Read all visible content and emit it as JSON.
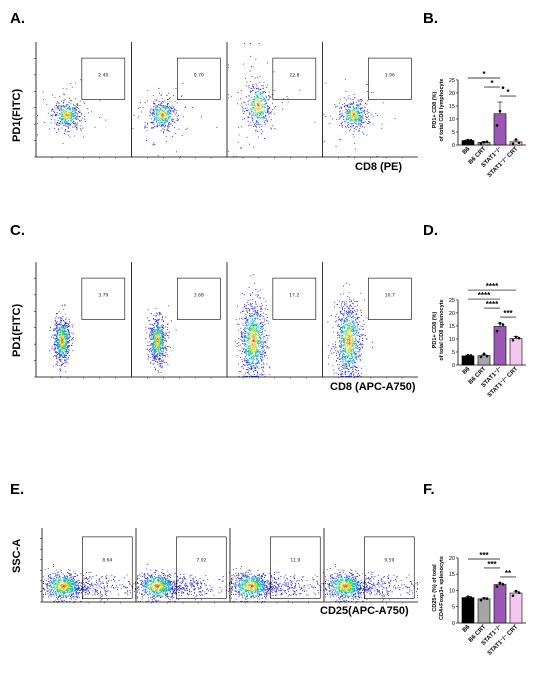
{
  "figure": {
    "letters": {
      "A": "A.",
      "B": "B.",
      "C": "C.",
      "D": "D.",
      "E": "E.",
      "F": "F."
    },
    "flow_rows": [
      {
        "id": "A",
        "ylabel": "PD1(FITC)",
        "xlabel": "CD8 (PE)",
        "gate_values": [
          "2.40",
          "0.70",
          "22.8",
          "1.96"
        ],
        "style": "sparse"
      },
      {
        "id": "C",
        "ylabel": "PD1(FITC)",
        "xlabel": "CD8 (APC-A750)",
        "gate_values": [
          "3.79",
          "3.68",
          "17.2",
          "10.7"
        ],
        "style": "vertical"
      },
      {
        "id": "E",
        "ylabel": "SSC-A",
        "xlabel": "CD25(APC-A750)",
        "gate_values": [
          "8.64",
          "7.02",
          "11.9",
          "9.59"
        ],
        "style": "horizontal"
      }
    ]
  },
  "chart_data": [
    {
      "panel": "B",
      "type": "bar",
      "ylabel_lines": [
        "PD1+ CD8 (%)",
        "of total CD8 lymphocyte"
      ],
      "categories": [
        "B6",
        "B6 CRT",
        "STAT1⁻/⁻",
        "STAT1⁻/⁻ CRT"
      ],
      "values": [
        1.7,
        1.0,
        12.0,
        1.2
      ],
      "errors": [
        0.3,
        0.3,
        4.5,
        0.7
      ],
      "points": [
        [
          1.5,
          1.9,
          1.8
        ],
        [
          0.6,
          1.1,
          1.3
        ],
        [
          7.5,
          13.0,
          22.0
        ],
        [
          0.5,
          2.1,
          0.9
        ]
      ],
      "colors": [
        "#000000",
        "#a6a6a6",
        "#9b59b6",
        "#f5c6f0"
      ],
      "ylim": [
        0,
        25
      ],
      "yticks": [
        0,
        5,
        10,
        15,
        20,
        25
      ],
      "significance": [
        {
          "from": 0,
          "to": 2,
          "label": "*",
          "level": 2
        },
        {
          "from": 1,
          "to": 2,
          "label": "*",
          "level": 1
        },
        {
          "from": 2,
          "to": 3,
          "label": "*",
          "level": 0
        }
      ]
    },
    {
      "panel": "D",
      "type": "bar",
      "ylabel_lines": [
        "PD1+ CD8 (%)",
        "of total CD8 splenocyte"
      ],
      "categories": [
        "B6",
        "B6 CRT",
        "STAT1⁻/⁻",
        "STAT1⁻/⁻ CRT"
      ],
      "values": [
        3.5,
        3.6,
        14.8,
        10.2
      ],
      "errors": [
        0.3,
        0.4,
        1.3,
        0.8
      ],
      "points": [
        [
          3.0,
          3.8,
          3.7
        ],
        [
          3.1,
          4.3,
          3.4
        ],
        [
          13.0,
          16.0,
          15.5
        ],
        [
          9.5,
          10.8,
          10.3
        ]
      ],
      "colors": [
        "#000000",
        "#a6a6a6",
        "#9b59b6",
        "#f5c6f0"
      ],
      "ylim": [
        0,
        25
      ],
      "yticks": [
        0,
        5,
        10,
        15,
        20,
        25
      ],
      "significance": [
        {
          "from": 0,
          "to": 3,
          "label": "****",
          "level": 3
        },
        {
          "from": 0,
          "to": 2,
          "label": "****",
          "level": 2
        },
        {
          "from": 1,
          "to": 2,
          "label": "****",
          "level": 1
        },
        {
          "from": 2,
          "to": 3,
          "label": "***",
          "level": 0
        }
      ]
    },
    {
      "panel": "F",
      "type": "bar",
      "ylabel_lines": [
        "CD25+ (%) of total",
        "CD4+Foxp3+ splenocyte"
      ],
      "categories": [
        "B6",
        "B6 CRT",
        "STAT1⁻/⁻",
        "STAT1⁻/⁻ CRT"
      ],
      "values": [
        7.8,
        7.4,
        11.8,
        9.2
      ],
      "errors": [
        0.3,
        0.3,
        0.5,
        0.6
      ],
      "points": [
        [
          7.5,
          8.1,
          7.8
        ],
        [
          7.0,
          7.6,
          7.5
        ],
        [
          11.2,
          12.3,
          11.9
        ],
        [
          8.4,
          9.8,
          9.3
        ]
      ],
      "colors": [
        "#000000",
        "#a6a6a6",
        "#9b59b6",
        "#f5c6f0"
      ],
      "ylim": [
        0,
        20
      ],
      "yticks": [
        0,
        5,
        10,
        15,
        20
      ],
      "significance": [
        {
          "from": 0,
          "to": 2,
          "label": "***",
          "level": 2
        },
        {
          "from": 1,
          "to": 2,
          "label": "***",
          "level": 1
        },
        {
          "from": 2,
          "to": 3,
          "label": "**",
          "level": 0
        }
      ]
    }
  ]
}
